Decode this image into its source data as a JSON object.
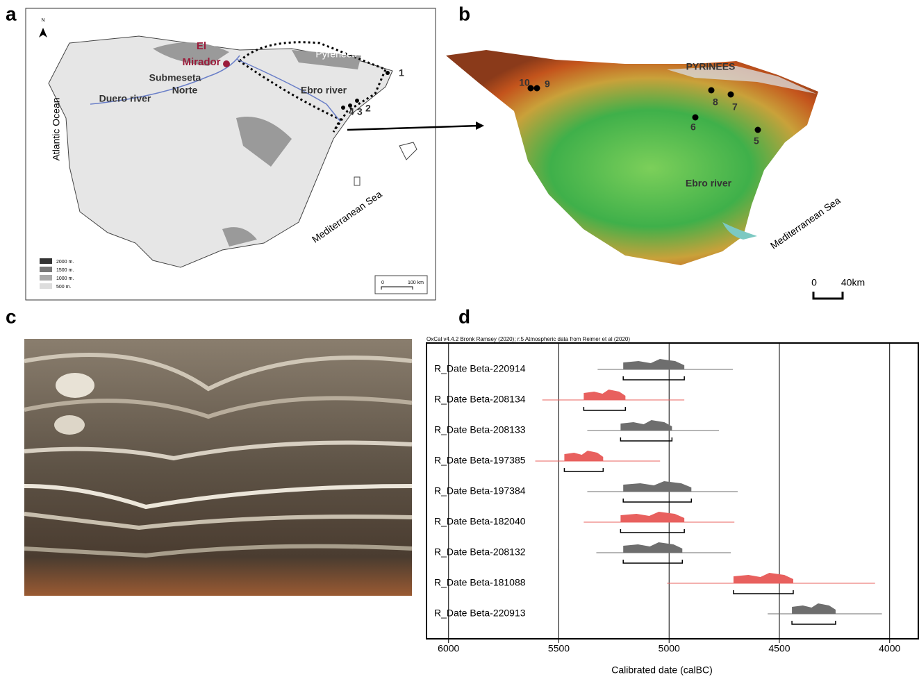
{
  "panels": {
    "a": {
      "label": "a",
      "north": "N",
      "site": [
        "El",
        "Mirador"
      ],
      "region": [
        "Submeseta",
        "Norte"
      ],
      "mountains": "Pyrenees",
      "rivers": [
        "Ebro river",
        "Duero river"
      ],
      "ocean": "Atlantic Ocean",
      "sea": "Mediterranean Sea",
      "sites": [
        "1",
        "2",
        "3",
        "4"
      ],
      "legend": [
        "2000 m.",
        "1500 m.",
        "1000 m.",
        "500 m."
      ],
      "scale": [
        "0",
        "100 km"
      ]
    },
    "b": {
      "label": "b",
      "mountains": "PYRINEES",
      "river": "Ebro river",
      "sea": "Mediterranean Sea",
      "sites": [
        "5",
        "6",
        "7",
        "8",
        "9",
        "10"
      ],
      "scale": [
        "0",
        "40km"
      ]
    },
    "c": {
      "label": "c"
    },
    "d": {
      "label": "d"
    }
  },
  "chart_data": {
    "type": "range",
    "title": "OxCal v4.4.2 Bronk Ramsey (2020); r:5 Atmospheric data from Reimer et al (2020)",
    "xlabel": "Calibrated date (calBC)",
    "xlim": [
      6100,
      3870
    ],
    "xticks": [
      6000,
      5500,
      5000,
      4500,
      4000
    ],
    "series": [
      {
        "name": "R_Date Beta-220914",
        "color": "#6e6e6e",
        "span": [
          5324,
          4711
        ],
        "range": [
          5208,
          4931
        ]
      },
      {
        "name": "R_Date Beta-208134",
        "color": "#e8605e",
        "span": [
          5575,
          4931
        ],
        "range": [
          5387,
          5198
        ]
      },
      {
        "name": "R_Date Beta-208133",
        "color": "#6e6e6e",
        "span": [
          5371,
          4774
        ],
        "range": [
          5220,
          4987
        ]
      },
      {
        "name": "R_Date Beta-197385",
        "color": "#e8605e",
        "span": [
          5607,
          5041
        ],
        "range": [
          5475,
          5299
        ]
      },
      {
        "name": "R_Date Beta-197384",
        "color": "#6e6e6e",
        "span": [
          5371,
          4689
        ],
        "range": [
          5208,
          4899
        ]
      },
      {
        "name": "R_Date Beta-182040",
        "color": "#e8605e",
        "span": [
          5387,
          4704
        ],
        "range": [
          5220,
          4931
        ]
      },
      {
        "name": "R_Date Beta-208132",
        "color": "#6e6e6e",
        "span": [
          5330,
          4720
        ],
        "range": [
          5208,
          4940
        ]
      },
      {
        "name": "R_Date Beta-181088",
        "color": "#e8605e",
        "span": [
          5009,
          4066
        ],
        "range": [
          4708,
          4437
        ]
      },
      {
        "name": "R_Date Beta-220913",
        "color": "#6e6e6e",
        "span": [
          4553,
          4035
        ],
        "range": [
          4443,
          4245
        ]
      }
    ]
  }
}
